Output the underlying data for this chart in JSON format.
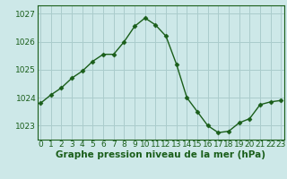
{
  "x": [
    0,
    1,
    2,
    3,
    4,
    5,
    6,
    7,
    8,
    9,
    10,
    11,
    12,
    13,
    14,
    15,
    16,
    17,
    18,
    19,
    20,
    21,
    22,
    23
  ],
  "y": [
    1023.8,
    1024.1,
    1024.35,
    1024.7,
    1024.95,
    1025.3,
    1025.55,
    1025.55,
    1026.0,
    1026.55,
    1026.85,
    1026.6,
    1026.2,
    1025.2,
    1024.0,
    1023.5,
    1023.0,
    1022.75,
    1022.8,
    1023.1,
    1023.25,
    1023.75,
    1023.85,
    1023.9
  ],
  "line_color": "#1a5e1a",
  "marker": "D",
  "marker_size": 2.5,
  "bg_color": "#cde8e8",
  "grid_color": "#aacccc",
  "ylabel_ticks": [
    1023,
    1024,
    1025,
    1026,
    1027
  ],
  "xlabel_ticks": [
    0,
    1,
    2,
    3,
    4,
    5,
    6,
    7,
    8,
    9,
    10,
    11,
    12,
    13,
    14,
    15,
    16,
    17,
    18,
    19,
    20,
    21,
    22,
    23
  ],
  "ylim": [
    1022.5,
    1027.3
  ],
  "xlim": [
    -0.3,
    23.3
  ],
  "xlabel": "Graphe pression niveau de la mer (hPa)",
  "xlabel_fontsize": 7.5,
  "tick_fontsize": 6.5,
  "axis_color": "#1a5e1a",
  "spine_color": "#1a5e1a",
  "linewidth": 1.0
}
